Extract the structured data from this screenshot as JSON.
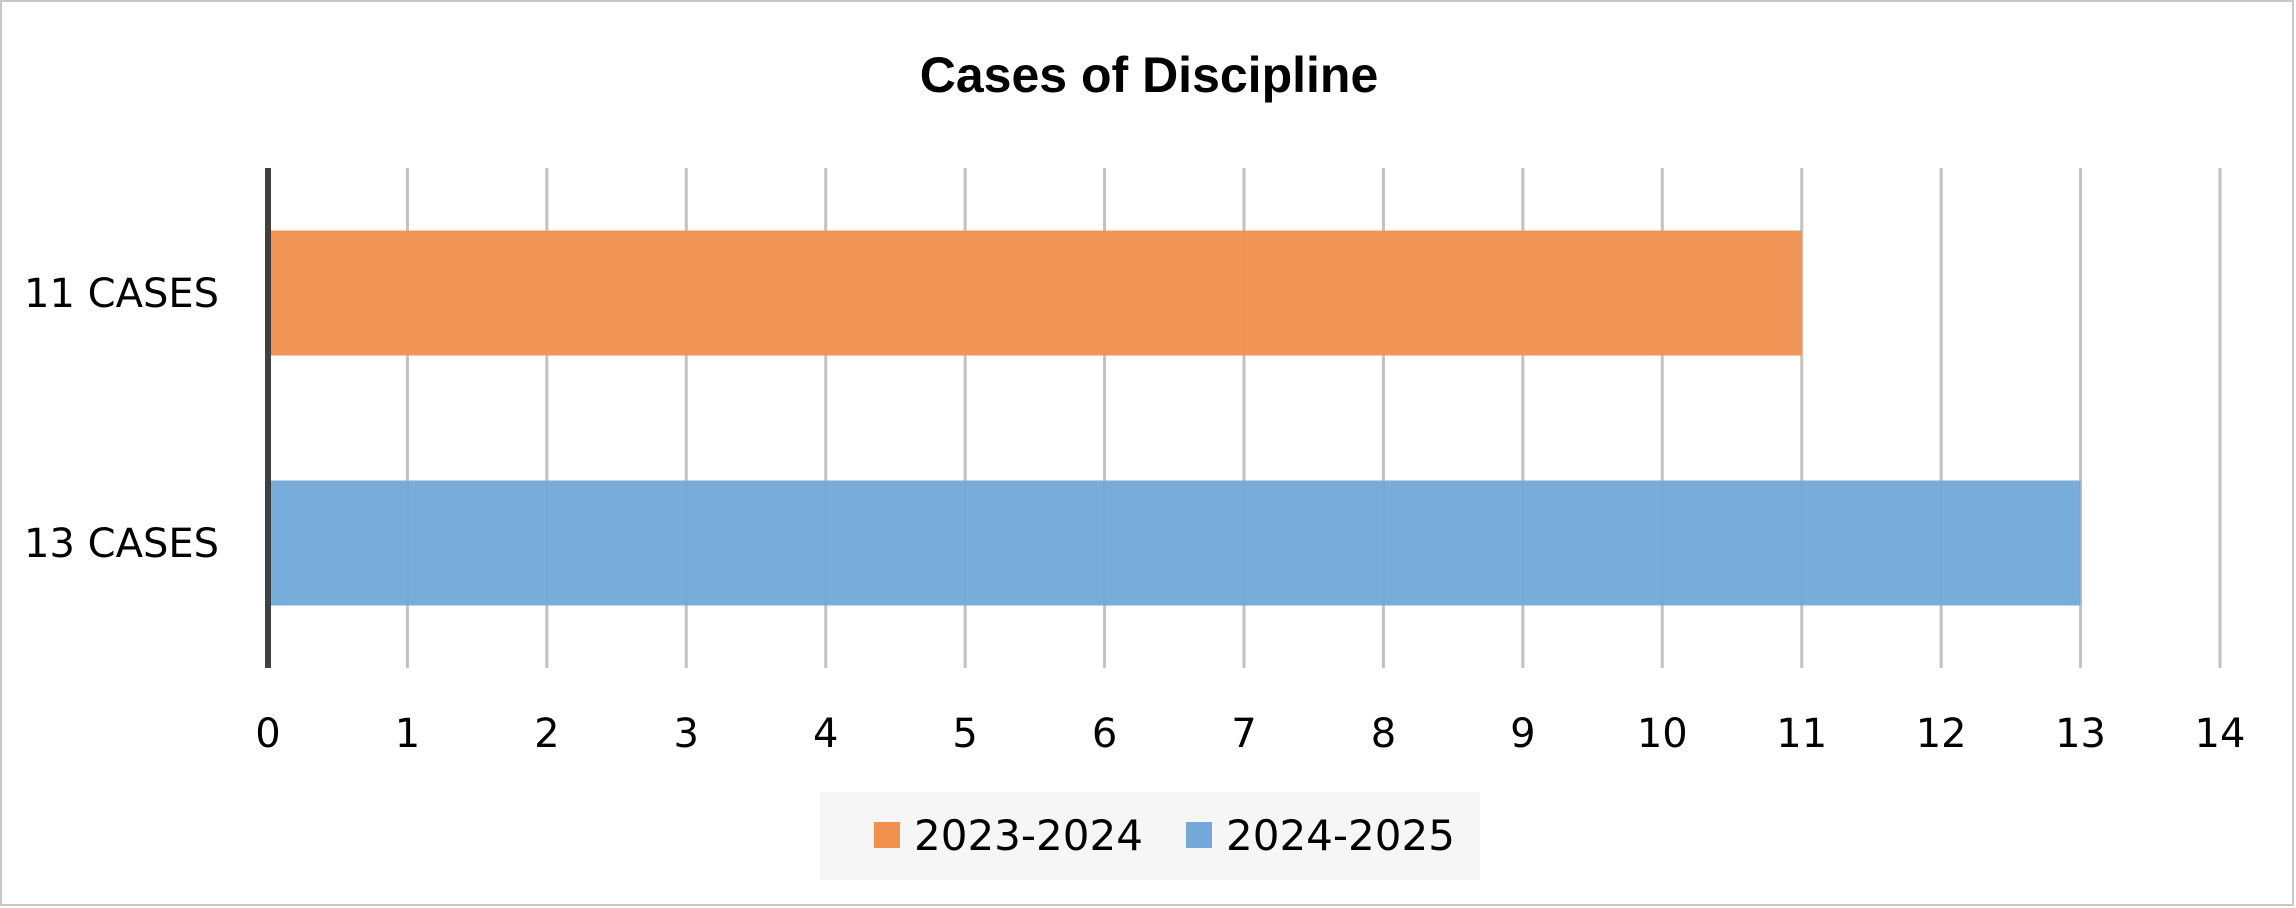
{
  "chart_data": {
    "type": "bar",
    "orientation": "horizontal",
    "title": "Cases of Discipline",
    "xlabel": "",
    "ylabel": "",
    "xlim": [
      0,
      14
    ],
    "x_ticks": [
      0,
      1,
      2,
      3,
      4,
      5,
      6,
      7,
      8,
      9,
      10,
      11,
      12,
      13,
      14
    ],
    "grid": "vertical",
    "legend_position": "bottom",
    "bars": [
      {
        "category": "11 CASES",
        "series": "2023-2024",
        "value": 11,
        "color": "#F0914F"
      },
      {
        "category": "13 CASES",
        "series": "2024-2025",
        "value": 13,
        "color": "#73A9D9"
      }
    ],
    "legend": [
      {
        "label": "2023-2024",
        "color": "#F0914F"
      },
      {
        "label": "2024-2025",
        "color": "#73A9D9"
      }
    ]
  }
}
